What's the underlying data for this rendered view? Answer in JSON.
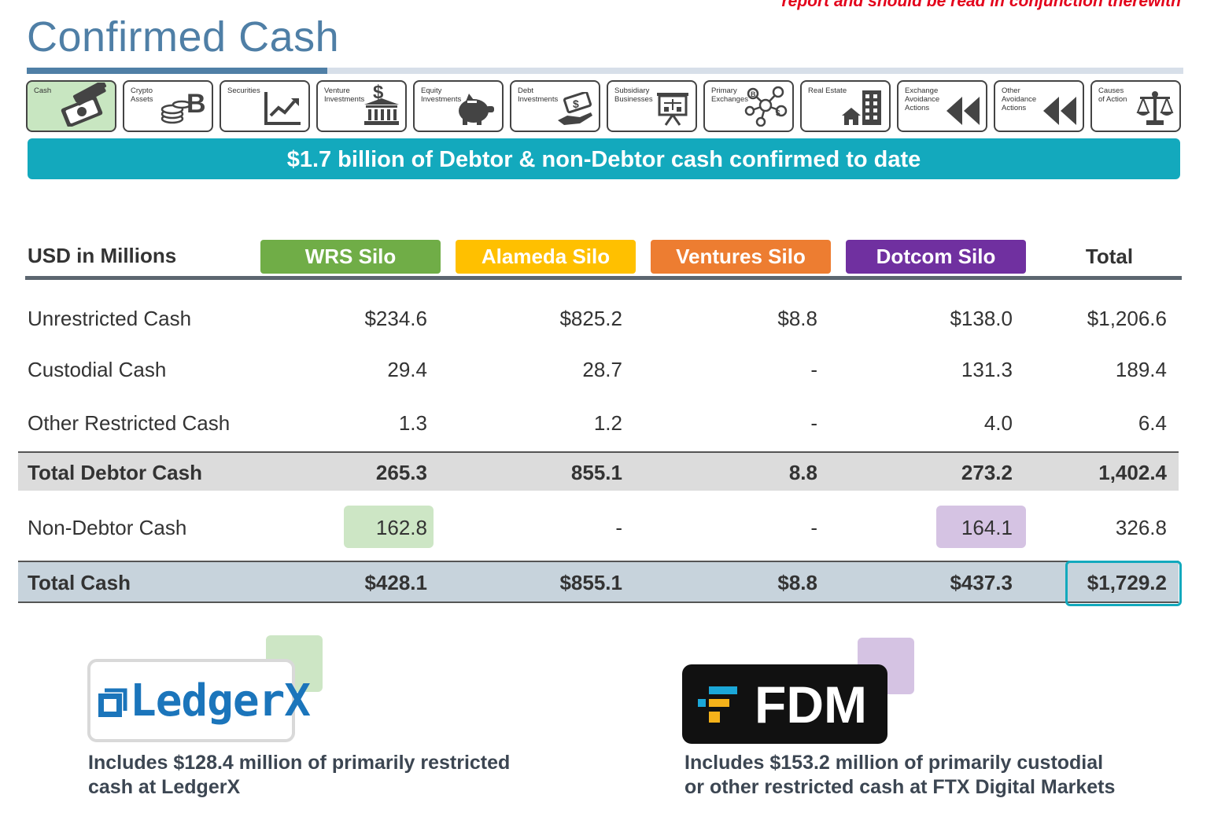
{
  "disclaimer": "report and should be read in conjunction therewith",
  "title": "Confirmed Cash",
  "tabs": [
    {
      "label": "Cash",
      "icon": "cash-icon",
      "active": true
    },
    {
      "label": "Crypto\nAssets",
      "icon": "crypto-coins-icon"
    },
    {
      "label": "Securities",
      "icon": "chart-growth-icon"
    },
    {
      "label": "Venture\nInvestments",
      "icon": "bank-dollar-icon"
    },
    {
      "label": "Equity\nInvestments",
      "icon": "piggy-bank-icon"
    },
    {
      "label": "Debt\nInvestments",
      "icon": "hand-money-icon"
    },
    {
      "label": "Subsidiary\nBusinesses",
      "icon": "presentation-board-icon"
    },
    {
      "label": "Primary\nExchanges",
      "icon": "network-nodes-icon"
    },
    {
      "label": "Real Estate",
      "icon": "buildings-icon"
    },
    {
      "label": "Exchange\nAvoidance\nActions",
      "icon": "rewind-icon"
    },
    {
      "label": "Other\nAvoidance\nActions",
      "icon": "rewind-icon"
    },
    {
      "label": "Causes\nof Action",
      "icon": "scales-icon"
    }
  ],
  "banner": "$1.7 billion of Debtor & non-Debtor cash confirmed to date",
  "table": {
    "unit_label": "USD in Millions",
    "columns": [
      {
        "label": "WRS Silo",
        "color": "#70ad47"
      },
      {
        "label": "Alameda Silo",
        "color": "#ffc000"
      },
      {
        "label": "Ventures Silo",
        "color": "#ed7d31"
      },
      {
        "label": "Dotcom Silo",
        "color": "#7030a0"
      }
    ],
    "total_label": "Total",
    "rows": [
      {
        "label": "Unrestricted Cash",
        "values": [
          "$234.6",
          "$825.2",
          "$8.8",
          "$138.0",
          "$1,206.6"
        ]
      },
      {
        "label": "Custodial Cash",
        "values": [
          "29.4",
          "28.7",
          "-",
          "131.3",
          "189.4"
        ]
      },
      {
        "label": "Other Restricted Cash",
        "values": [
          "1.3",
          "1.2",
          "-",
          "4.0",
          "6.4"
        ]
      },
      {
        "label": "Total Debtor Cash",
        "values": [
          "265.3",
          "855.1",
          "8.8",
          "273.2",
          "1,402.4"
        ]
      },
      {
        "label": "Non-Debtor Cash",
        "values": [
          "162.8",
          "-",
          "-",
          "164.1",
          "326.8"
        ]
      },
      {
        "label": "Total Cash",
        "values": [
          "$428.1",
          "$855.1",
          "$8.8",
          "$437.3",
          "$1,729.2"
        ]
      }
    ]
  },
  "ledgerx": {
    "logo_text": "LedgerX",
    "caption_line1": "Includes $128.4 million of primarily restricted",
    "caption_line2": "cash at LedgerX",
    "accent": "#cde6c5"
  },
  "fdm": {
    "logo_text": "FDM",
    "caption_line1": "Includes $153.2 million of primarily custodial",
    "caption_line2": "or other restricted cash at FTX Digital Markets",
    "accent": "#d5c3e3"
  }
}
